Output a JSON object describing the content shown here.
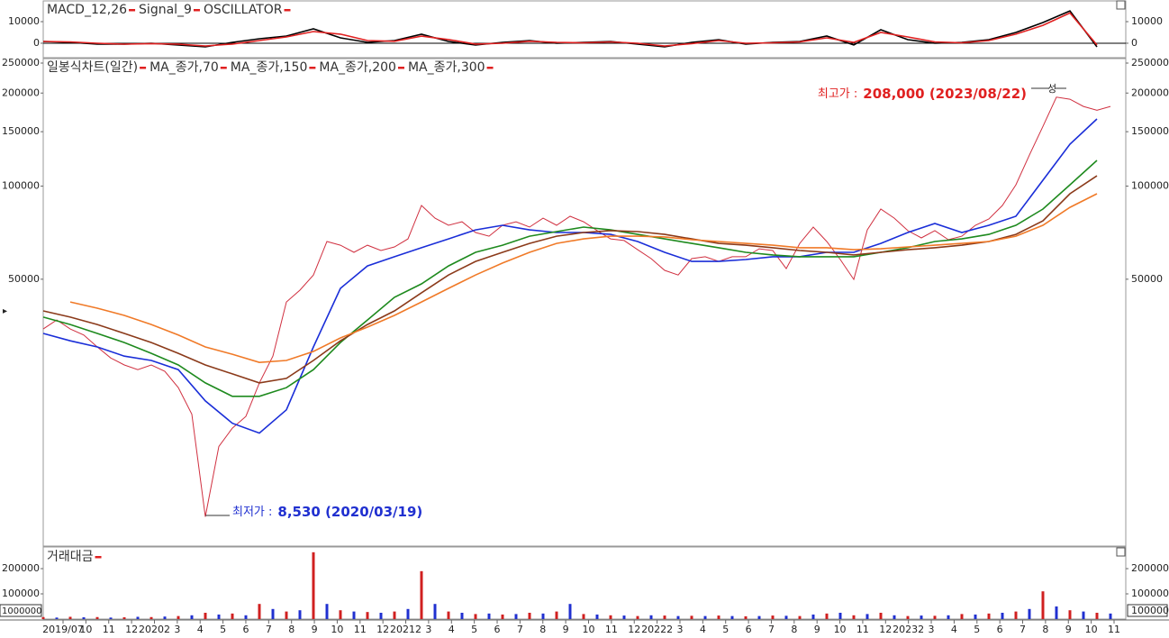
{
  "chart_data": [
    {
      "type": "line",
      "series": [
        {
          "name": "MACD_12,26",
          "color": "#000000",
          "values": [
            830,
            420,
            -420,
            -420,
            0,
            -830,
            -1670,
            420,
            2080,
            3330,
            6670,
            2500,
            420,
            1250,
            4170,
            830,
            -830,
            420,
            1250,
            0,
            420,
            830,
            -420,
            -1670,
            420,
            1670,
            -420,
            420,
            830,
            3330,
            -830,
            6250,
            1670,
            0,
            420,
            1670,
            5000,
            9580,
            15000,
            -1670
          ]
        },
        {
          "name": "Signal_9",
          "color": "#e02020",
          "values": [
            830,
            620,
            0,
            -420,
            -200,
            -420,
            -1250,
            -400,
            1250,
            2900,
            5400,
            4200,
            1250,
            900,
            3300,
            1700,
            -400,
            0,
            900,
            400,
            200,
            600,
            0,
            -1250,
            -200,
            1250,
            0,
            200,
            600,
            2500,
            400,
            5000,
            2900,
            600,
            200,
            1250,
            4200,
            8300,
            14000,
            -800
          ]
        }
      ],
      "legend_extra": "OSCILLATOR",
      "ylim": [
        -6700,
        19200
      ],
      "yticks": [
        0,
        10000
      ],
      "zero_line": true
    },
    {
      "type": "line",
      "log_scale": true,
      "series": [
        {
          "name": "일봉식차트(일간)",
          "color": "#d03040",
          "values": [
            34500,
            36900,
            34500,
            33000,
            30200,
            27800,
            26400,
            25500,
            26400,
            25200,
            22300,
            18300,
            8530,
            14400,
            16500,
            18000,
            23100,
            28200,
            42200,
            46100,
            51600,
            66200,
            64400,
            61100,
            64400,
            61900,
            63600,
            67500,
            86600,
            78800,
            74700,
            76700,
            70800,
            68900,
            74700,
            76700,
            73700,
            78800,
            74700,
            79900,
            76700,
            71800,
            67500,
            66700,
            62300,
            58300,
            53400,
            51600,
            58300,
            59100,
            57100,
            59100,
            59100,
            62700,
            61900,
            54100,
            65300,
            73700,
            66200,
            57900,
            49900,
            72200,
            84300,
            78800,
            71800,
            68000,
            71800,
            67100,
            68900,
            74700,
            78300,
            86600,
            101000,
            126000,
            156000,
            194000,
            191000,
            181000,
            176000,
            181000
          ]
        },
        {
          "name": "MA_종가,70",
          "color": "#1a2ed8",
          "values": [
            33400,
            31600,
            30200,
            28200,
            27300,
            25500,
            20200,
            17100,
            15900,
            18900,
            30200,
            46700,
            55200,
            59100,
            63200,
            67500,
            72200,
            74700,
            72200,
            70800,
            70800,
            69800,
            66200,
            61100,
            57100,
            57100,
            57900,
            59100,
            59100,
            61100,
            61100,
            65300,
            70800,
            75700,
            70800,
            74700,
            79900,
            104500,
            136700,
            164900
          ]
        },
        {
          "name": "MA_종가,150",
          "color": "#1e8a1e",
          "values": [
            37700,
            35700,
            33400,
            31200,
            28800,
            26400,
            23100,
            20900,
            20900,
            22300,
            25500,
            31200,
            36900,
            43700,
            48300,
            55200,
            61100,
            64400,
            68900,
            71300,
            73700,
            72200,
            69800,
            67500,
            65300,
            63200,
            61100,
            59900,
            59100,
            59100,
            59100,
            61100,
            63200,
            66200,
            67500,
            69800,
            74700,
            84300,
            101000,
            121100
          ]
        },
        {
          "name": "MA_종가,200",
          "color": "#8b3a1a",
          "values": [
            39500,
            37700,
            35700,
            33400,
            31200,
            28800,
            26400,
            24700,
            23100,
            23900,
            27300,
            31600,
            35700,
            39500,
            45200,
            51600,
            57100,
            61100,
            65300,
            68900,
            70800,
            71800,
            71300,
            69800,
            67500,
            65300,
            64400,
            63200,
            61900,
            61100,
            59900,
            61100,
            62300,
            63200,
            64400,
            66200,
            69800,
            77200,
            94500,
            108000
          ]
        },
        {
          "name": "MA_종가,300",
          "color": "#f07a28",
          "values": [
            null,
            42200,
            40300,
            38200,
            35700,
            33000,
            30200,
            28600,
            26900,
            27300,
            29200,
            32300,
            35000,
            38200,
            42200,
            46700,
            51600,
            56400,
            61100,
            65300,
            67500,
            68900,
            68900,
            68500,
            67100,
            66200,
            65300,
            64400,
            63200,
            63200,
            62300,
            62700,
            63600,
            64400,
            65300,
            66200,
            68900,
            74700,
            85400,
            94500
          ]
        }
      ],
      "ylim": [
        6900,
        250000
      ],
      "yticks": [
        50000,
        100000,
        150000,
        200000,
        250000
      ],
      "annotations": [
        {
          "label": "최고가 :",
          "text": "208,000 (2023/08/22)",
          "color": "#e02020"
        },
        {
          "label": "최저가 :",
          "text": "8,530 (2020/03/19)",
          "color": "#2030d0"
        },
        {
          "text": "성",
          "color": "#000000"
        }
      ]
    },
    {
      "type": "bar",
      "series": [
        {
          "name": "거래대금",
          "color": "#d02020",
          "values": [
            8000,
            6000,
            9000,
            7000,
            8000,
            6000,
            7000,
            9000,
            8000,
            10000,
            12000,
            15000,
            25000,
            18000,
            22000,
            15000,
            60000,
            40000,
            30000,
            35000,
            265000,
            60000,
            35000,
            30000,
            28000,
            25000,
            30000,
            40000,
            190000,
            60000,
            30000,
            25000,
            20000,
            22000,
            18000,
            20000,
            25000,
            22000,
            30000,
            60000,
            20000,
            18000,
            15000,
            14000,
            12000,
            15000,
            14000,
            12000,
            13000,
            12000,
            14000,
            12000,
            11000,
            12000,
            14000,
            13000,
            12000,
            18000,
            22000,
            25000,
            15000,
            20000,
            25000,
            15000,
            12000,
            14000,
            13000,
            15000,
            20000,
            18000,
            22000,
            25000,
            30000,
            40000,
            110000,
            50000,
            35000,
            30000,
            25000,
            22000
          ]
        }
      ],
      "ylim": [
        0,
        268000
      ],
      "yticks": [
        100000,
        200000
      ],
      "marker_labels": [
        "1000000",
        "100000"
      ],
      "xtick_labels": [
        "2019/07",
        "10",
        "11",
        "12",
        "20202",
        "3",
        "4",
        "5",
        "6",
        "7",
        "8",
        "9",
        "10",
        "11",
        "12",
        "20212",
        "3",
        "4",
        "5",
        "6",
        "7",
        "8",
        "9",
        "10",
        "11",
        "12",
        "20222",
        "3",
        "4",
        "5",
        "6",
        "7",
        "8",
        "9",
        "10",
        "11",
        "12",
        "20232",
        "3",
        "4",
        "5",
        "6",
        "7",
        "8",
        "9",
        "10",
        "11"
      ]
    }
  ]
}
